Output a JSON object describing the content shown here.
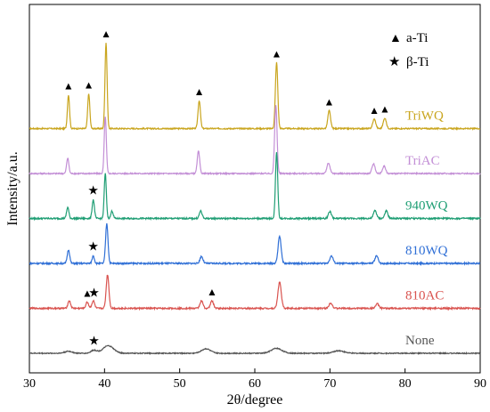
{
  "chart_data": {
    "type": "line",
    "title": "",
    "xlabel": "2θ/degree",
    "ylabel": "Intensity/a.u.",
    "xlim": [
      30,
      90
    ],
    "xticks": [
      "30",
      "40",
      "50",
      "60",
      "70",
      "80",
      "90"
    ],
    "yticks_shown": false,
    "grid": false,
    "legend": {
      "placement": "top-right",
      "entries": [
        {
          "symbol": "▲",
          "label": "a-Ti"
        },
        {
          "symbol": "★",
          "label": "β-Ti"
        }
      ]
    },
    "series": [
      {
        "name": "TriWQ",
        "color": "#c9a51e",
        "baseline": 5,
        "noise": 0.05,
        "peaks": [
          {
            "x": 35.2,
            "h": 1.35,
            "w": 0.14
          },
          {
            "x": 37.9,
            "h": 1.4,
            "w": 0.14
          },
          {
            "x": 40.2,
            "h": 3.45,
            "w": 0.14
          },
          {
            "x": 52.6,
            "h": 1.12,
            "w": 0.16
          },
          {
            "x": 62.9,
            "h": 2.65,
            "w": 0.16
          },
          {
            "x": 69.9,
            "h": 0.72,
            "w": 0.18
          },
          {
            "x": 75.9,
            "h": 0.38,
            "w": 0.2
          },
          {
            "x": 77.3,
            "h": 0.42,
            "w": 0.2
          }
        ],
        "markers": [
          {
            "x": 35.2,
            "symbol": "▲"
          },
          {
            "x": 37.9,
            "symbol": "▲"
          },
          {
            "x": 40.2,
            "symbol": "▲"
          },
          {
            "x": 52.6,
            "symbol": "▲"
          },
          {
            "x": 62.9,
            "symbol": "▲"
          },
          {
            "x": 69.9,
            "symbol": "▲"
          },
          {
            "x": 75.9,
            "symbol": "▲"
          },
          {
            "x": 77.3,
            "symbol": "▲"
          }
        ]
      },
      {
        "name": "TriAC",
        "color": "#c38fd6",
        "baseline": 4,
        "noise": 0.05,
        "peaks": [
          {
            "x": 35.1,
            "h": 0.62,
            "w": 0.15
          },
          {
            "x": 40.1,
            "h": 2.3,
            "w": 0.14
          },
          {
            "x": 52.5,
            "h": 0.9,
            "w": 0.16
          },
          {
            "x": 62.8,
            "h": 2.75,
            "w": 0.16
          },
          {
            "x": 69.8,
            "h": 0.42,
            "w": 0.2
          },
          {
            "x": 75.8,
            "h": 0.4,
            "w": 0.2
          },
          {
            "x": 77.2,
            "h": 0.3,
            "w": 0.2
          }
        ],
        "markers": []
      },
      {
        "name": "940WQ",
        "color": "#1f9e74",
        "baseline": 3,
        "noise": 0.06,
        "peaks": [
          {
            "x": 35.1,
            "h": 0.45,
            "w": 0.15
          },
          {
            "x": 38.5,
            "h": 0.75,
            "w": 0.15
          },
          {
            "x": 40.1,
            "h": 1.8,
            "w": 0.14
          },
          {
            "x": 41.0,
            "h": 0.3,
            "w": 0.15
          },
          {
            "x": 52.8,
            "h": 0.3,
            "w": 0.18
          },
          {
            "x": 62.9,
            "h": 2.65,
            "w": 0.15
          },
          {
            "x": 70.0,
            "h": 0.28,
            "w": 0.2
          },
          {
            "x": 76.0,
            "h": 0.32,
            "w": 0.2
          },
          {
            "x": 77.5,
            "h": 0.3,
            "w": 0.2
          }
        ],
        "markers": [
          {
            "x": 38.5,
            "symbol": "★"
          }
        ]
      },
      {
        "name": "810WQ",
        "color": "#2f6fd6",
        "baseline": 2,
        "noise": 0.06,
        "peaks": [
          {
            "x": 35.2,
            "h": 0.55,
            "w": 0.16
          },
          {
            "x": 38.5,
            "h": 0.3,
            "w": 0.15
          },
          {
            "x": 40.3,
            "h": 1.6,
            "w": 0.16
          },
          {
            "x": 52.9,
            "h": 0.28,
            "w": 0.2
          },
          {
            "x": 63.3,
            "h": 1.1,
            "w": 0.2
          },
          {
            "x": 70.2,
            "h": 0.3,
            "w": 0.22
          },
          {
            "x": 76.2,
            "h": 0.3,
            "w": 0.22
          }
        ],
        "markers": [
          {
            "x": 38.5,
            "symbol": "★"
          }
        ]
      },
      {
        "name": "810AC",
        "color": "#d9534f",
        "baseline": 1,
        "noise": 0.06,
        "peaks": [
          {
            "x": 35.3,
            "h": 0.3,
            "w": 0.18
          },
          {
            "x": 37.7,
            "h": 0.25,
            "w": 0.18
          },
          {
            "x": 38.5,
            "h": 0.3,
            "w": 0.18
          },
          {
            "x": 40.4,
            "h": 1.35,
            "w": 0.18
          },
          {
            "x": 52.9,
            "h": 0.3,
            "w": 0.2
          },
          {
            "x": 54.3,
            "h": 0.3,
            "w": 0.2
          },
          {
            "x": 63.3,
            "h": 1.05,
            "w": 0.22
          },
          {
            "x": 70.1,
            "h": 0.22,
            "w": 0.22
          },
          {
            "x": 76.3,
            "h": 0.18,
            "w": 0.22
          }
        ],
        "markers": [
          {
            "x": 37.7,
            "symbol": "▲"
          },
          {
            "x": 38.6,
            "symbol": "★"
          },
          {
            "x": 54.3,
            "symbol": "▲"
          }
        ]
      },
      {
        "name": "None",
        "color": "#555555",
        "baseline": 0,
        "noise": 0.04,
        "peaks": [
          {
            "x": 35.2,
            "h": 0.08,
            "w": 0.5
          },
          {
            "x": 38.6,
            "h": 0.12,
            "w": 0.4
          },
          {
            "x": 40.5,
            "h": 0.3,
            "w": 0.7
          },
          {
            "x": 53.5,
            "h": 0.18,
            "w": 0.6
          },
          {
            "x": 62.9,
            "h": 0.2,
            "w": 0.7
          },
          {
            "x": 71.2,
            "h": 0.1,
            "w": 0.7
          }
        ],
        "markers": [
          {
            "x": 38.6,
            "symbol": "★"
          }
        ]
      }
    ]
  }
}
